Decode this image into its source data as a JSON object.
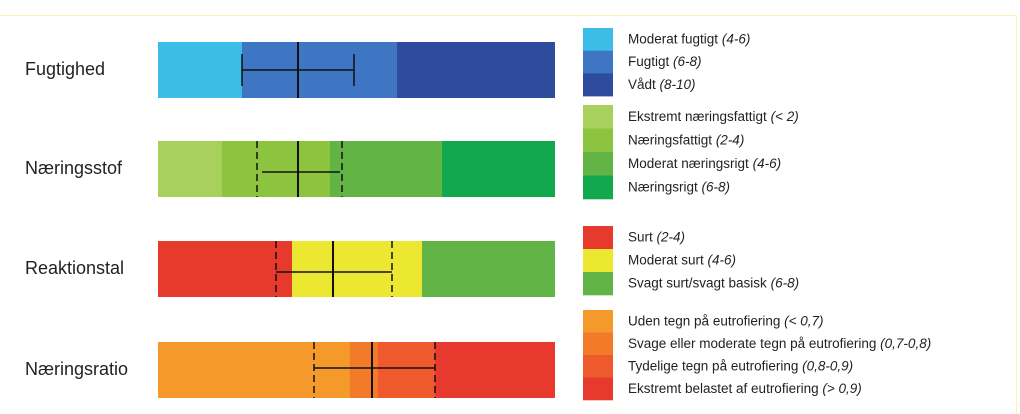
{
  "rows": [
    {
      "label": "Fugtighed",
      "legend": [
        {
          "name": "Moderat fugtigt",
          "range": "(4-6)",
          "color": "#3bbde8"
        },
        {
          "name": "Fugtigt",
          "range": "(6-8)",
          "color": "#3f76c4"
        },
        {
          "name": "Vådt",
          "range": "(8-10)",
          "color": "#2f4b9e"
        }
      ]
    },
    {
      "label": "Næringsstof",
      "legend": [
        {
          "name": "Ekstremt næringsfattigt",
          "range": "(< 2)",
          "color": "#a8d05c"
        },
        {
          "name": "Næringsfattigt",
          "range": "(2-4)",
          "color": "#8cc43f"
        },
        {
          "name": "Moderat næringsrigt",
          "range": "(4-6)",
          "color": "#62b545"
        },
        {
          "name": "Næringsrigt",
          "range": "(6-8)",
          "color": "#12a94e"
        }
      ]
    },
    {
      "label": "Reaktionstal",
      "legend": [
        {
          "name": "Surt",
          "range": "(2-4)",
          "color": "#e63a2c"
        },
        {
          "name": "Moderat surt",
          "range": "(4-6)",
          "color": "#ece832"
        },
        {
          "name": "Svagt surt/svagt basisk",
          "range": "(6-8)",
          "color": "#63b446"
        }
      ]
    },
    {
      "label": "Næringsratio",
      "legend": [
        {
          "name": "Uden tegn på eutrofiering",
          "range": "(< 0,7)",
          "color": "#f59a2a"
        },
        {
          "name": "Svage eller moderate tegn på eutrofiering",
          "range": "(0,7-0,8)",
          "color": "#f27b2a"
        },
        {
          "name": "Tydelige tegn på eutrofiering",
          "range": "(0,8-0,9)",
          "color": "#ee5a2c"
        },
        {
          "name": "Ekstremt belastet af eutrofiering",
          "range": "(> 0,9)",
          "color": "#e8392e"
        }
      ]
    }
  ]
}
